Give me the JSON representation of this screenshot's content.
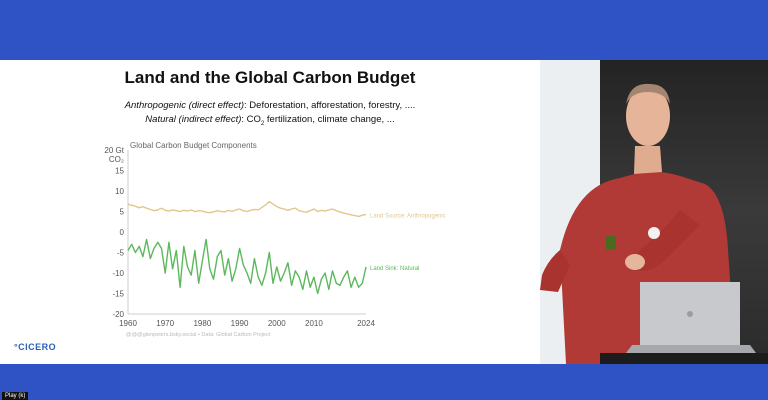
{
  "slide": {
    "title": "Land and the Global Carbon Budget",
    "line1": {
      "label": "Anthropogenic (direct effect)",
      "text": ": Deforestation, afforestation, forestry, ...."
    },
    "line2": {
      "label": "Natural (indirect effect)",
      "text_before": ": CO",
      "subscript": "2",
      "text_after": " fertilization, climate change, ..."
    },
    "logo_text": "°CICERO",
    "credit": "@@@glenpeters.bsky.social  •  Data: Global Carbon Project"
  },
  "chart_data": {
    "type": "line",
    "title": "Global Carbon Budget Components",
    "ylabel": "20 Gt CO₂",
    "ylabel_parts": [
      "20 Gt",
      "CO₂"
    ],
    "xlim": [
      1960,
      2024
    ],
    "ylim": [
      -20,
      20
    ],
    "x_ticks": [
      1960,
      1970,
      1980,
      1990,
      2000,
      2010,
      2024
    ],
    "y_ticks": [
      15,
      10,
      5,
      0,
      -5,
      -10,
      -15,
      -20
    ],
    "grid": false,
    "series": [
      {
        "name": "Land Source: Anthropogenic",
        "color": "#e2c78a",
        "x": [
          1960,
          1961,
          1962,
          1963,
          1964,
          1965,
          1966,
          1967,
          1968,
          1969,
          1970,
          1971,
          1972,
          1973,
          1974,
          1975,
          1976,
          1977,
          1978,
          1979,
          1980,
          1981,
          1982,
          1983,
          1984,
          1985,
          1986,
          1987,
          1988,
          1989,
          1990,
          1991,
          1992,
          1993,
          1994,
          1995,
          1996,
          1997,
          1998,
          1999,
          2000,
          2001,
          2002,
          2003,
          2004,
          2005,
          2006,
          2007,
          2008,
          2009,
          2010,
          2011,
          2012,
          2013,
          2014,
          2015,
          2016,
          2017,
          2018,
          2019,
          2020,
          2021,
          2022,
          2023,
          2024
        ],
        "values": [
          6.8,
          6.5,
          6.3,
          5.9,
          6.2,
          5.8,
          5.5,
          5.2,
          5.4,
          5.8,
          5.3,
          5.1,
          5.4,
          5.2,
          5.0,
          5.3,
          5.1,
          5.4,
          5.0,
          5.2,
          5.1,
          4.8,
          4.7,
          4.9,
          5.2,
          5.0,
          4.9,
          5.3,
          5.0,
          5.4,
          5.6,
          5.2,
          5.0,
          5.3,
          5.5,
          5.4,
          6.0,
          6.6,
          7.4,
          6.8,
          6.2,
          5.8,
          5.6,
          5.3,
          5.6,
          5.8,
          5.2,
          5.0,
          4.8,
          5.2,
          5.6,
          5.0,
          5.3,
          5.1,
          5.4,
          5.6,
          5.2,
          4.9,
          4.6,
          4.4,
          4.2,
          4.0,
          3.8,
          4.1,
          4.3
        ]
      },
      {
        "name": "Land Sink: Natural",
        "color": "#5cb85c",
        "x": [
          1960,
          1961,
          1962,
          1963,
          1964,
          1965,
          1966,
          1967,
          1968,
          1969,
          1970,
          1971,
          1972,
          1973,
          1974,
          1975,
          1976,
          1977,
          1978,
          1979,
          1980,
          1981,
          1982,
          1983,
          1984,
          1985,
          1986,
          1987,
          1988,
          1989,
          1990,
          1991,
          1992,
          1993,
          1994,
          1995,
          1996,
          1997,
          1998,
          1999,
          2000,
          2001,
          2002,
          2003,
          2004,
          2005,
          2006,
          2007,
          2008,
          2009,
          2010,
          2011,
          2012,
          2013,
          2014,
          2015,
          2016,
          2017,
          2018,
          2019,
          2020,
          2021,
          2022,
          2023,
          2024
        ],
        "values": [
          -4.5,
          -3.0,
          -5.0,
          -3.5,
          -6.0,
          -1.8,
          -6.5,
          -4.0,
          -2.5,
          -4.0,
          -10.0,
          -2.5,
          -9.0,
          -4.5,
          -13.5,
          -3.5,
          -8.5,
          -10.5,
          -4.5,
          -12.5,
          -7.0,
          -1.8,
          -9.0,
          -11.5,
          -6.0,
          -4.5,
          -10.5,
          -6.5,
          -12.0,
          -9.0,
          -4.0,
          -8.0,
          -10.0,
          -12.5,
          -6.5,
          -11.0,
          -13.0,
          -10.0,
          -5.0,
          -12.5,
          -8.5,
          -12.0,
          -10.0,
          -7.5,
          -13.0,
          -9.5,
          -11.0,
          -14.0,
          -9.5,
          -13.5,
          -11.0,
          -15.0,
          -11.5,
          -10.0,
          -14.0,
          -9.5,
          -12.5,
          -13.0,
          -11.0,
          -9.5,
          -13.5,
          -11.0,
          -13.5,
          -12.5,
          -8.5
        ]
      }
    ],
    "legend_placement": "inline-right"
  },
  "name_chip": "Play (k)"
}
